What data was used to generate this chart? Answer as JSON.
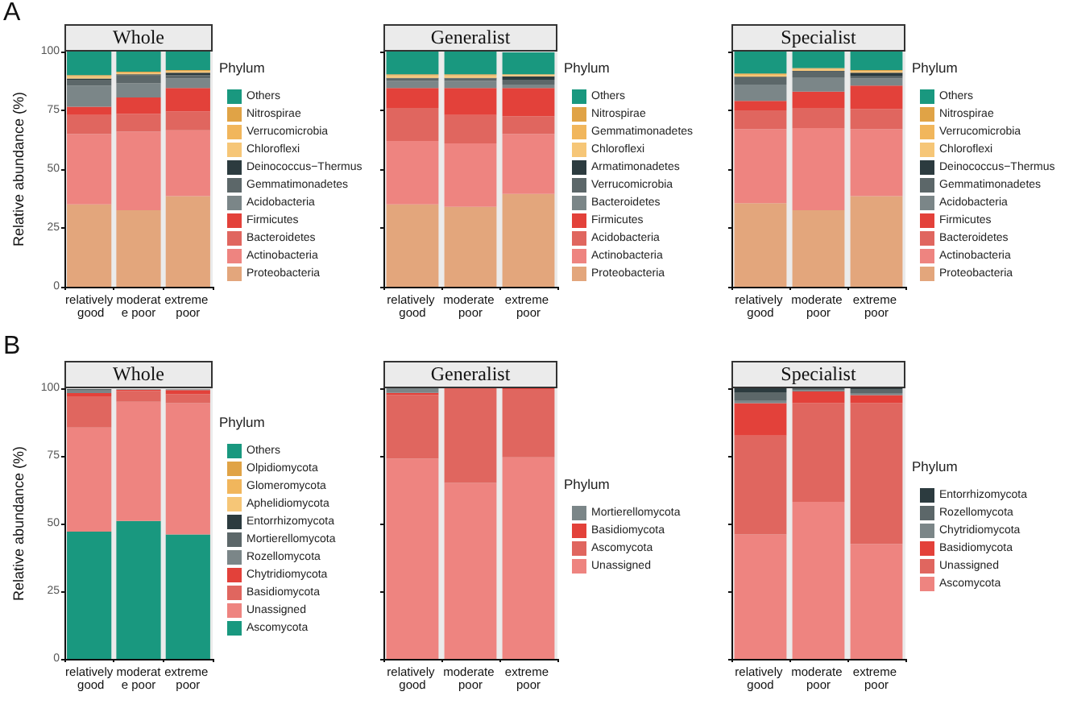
{
  "chart_data": [
    {
      "type": "bar",
      "title": "Whole",
      "annotations": [
        "A"
      ],
      "ylabel": "Relative abundance (%)",
      "legend_title": "Phylum",
      "legend": "right",
      "stacked": true,
      "categories": [
        "relatively good",
        "moderate poor",
        "extreme poor"
      ],
      "ylim": [
        0,
        100
      ],
      "yticks": [
        0,
        25,
        50,
        75,
        100
      ],
      "series": [
        {
          "name": "Proteobacteria",
          "color": "#e3a67c",
          "values": [
            35,
            32.5,
            38.5
          ]
        },
        {
          "name": "Actinobacteria",
          "color": "#ee8480",
          "values": [
            30,
            33.5,
            28
          ]
        },
        {
          "name": "Bacteroidetes",
          "color": "#e0665f",
          "values": [
            8,
            7.5,
            8
          ]
        },
        {
          "name": "Firmicutes",
          "color": "#e3413a",
          "values": [
            3.5,
            7,
            10
          ]
        },
        {
          "name": "Acidobacteria",
          "color": "#7b8688",
          "values": [
            9,
            6,
            4
          ]
        },
        {
          "name": "Gemmatimonadetes",
          "color": "#5c6769",
          "values": [
            2.5,
            3.5,
            1.5
          ]
        },
        {
          "name": "Deinococcus−Thermus",
          "color": "#2c3b3f",
          "values": [
            0.5,
            0.3,
            1
          ]
        },
        {
          "name": "Chloroflexi",
          "color": "#f6c677",
          "values": [
            0.7,
            0.5,
            0.5
          ]
        },
        {
          "name": "Verrucomicrobia",
          "color": "#f1b65c",
          "values": [
            0.4,
            0.3,
            0.3
          ]
        },
        {
          "name": "Nitrospirae",
          "color": "#e0a346",
          "values": [
            0.4,
            0.3,
            0.3
          ]
        },
        {
          "name": "Others",
          "color": "#19987f",
          "values": [
            10,
            8.6,
            7.9
          ]
        }
      ]
    },
    {
      "type": "bar",
      "title": "Generalist",
      "legend_title": "Phylum",
      "legend": "right",
      "stacked": true,
      "tick_labels": "x",
      "categories": [
        "relatively good",
        "moderate poor",
        "extreme poor"
      ],
      "ylim": [
        0,
        100
      ],
      "yticks": [
        0,
        25,
        50,
        75,
        100
      ],
      "series": [
        {
          "name": "Proteobacteria",
          "color": "#e3a67c",
          "values": [
            35,
            34,
            39.5
          ]
        },
        {
          "name": "Actinobacteria",
          "color": "#ee8480",
          "values": [
            27,
            27,
            25.5
          ]
        },
        {
          "name": "Acidobacteria",
          "color": "#e0665f",
          "values": [
            14,
            12,
            7.5
          ]
        },
        {
          "name": "Firmicutes",
          "color": "#e3413a",
          "values": [
            8.5,
            11.5,
            12
          ]
        },
        {
          "name": "Bacteroidetes",
          "color": "#7b8688",
          "values": [
            3,
            3,
            1.5
          ]
        },
        {
          "name": "Verrucomicrobia",
          "color": "#5c6769",
          "values": [
            1,
            1,
            2
          ]
        },
        {
          "name": "Armatimonadetes",
          "color": "#2c3b3f",
          "values": [
            0.3,
            0.3,
            1.5
          ]
        },
        {
          "name": "Chloroflexi",
          "color": "#f6c677",
          "values": [
            0.8,
            0.8,
            0.5
          ]
        },
        {
          "name": "Gemmatimonadetes",
          "color": "#f1b65c",
          "values": [
            0.3,
            0.3,
            0.3
          ]
        },
        {
          "name": "Nitrospirae",
          "color": "#e0a346",
          "values": [
            0.4,
            0.4,
            null
          ]
        },
        {
          "name": "Others",
          "color": "#19987f",
          "values": [
            9.7,
            9.7,
            9.4
          ]
        }
      ]
    },
    {
      "type": "bar",
      "title": "Specialist",
      "legend_title": "Phylum",
      "legend": "right",
      "stacked": true,
      "tick_labels": "x",
      "categories": [
        "relatively good",
        "moderate poor",
        "extreme poor"
      ],
      "ylim": [
        0,
        100
      ],
      "yticks": [
        0,
        25,
        50,
        75,
        100
      ],
      "series": [
        {
          "name": "Proteobacteria",
          "color": "#e3a67c",
          "values": [
            35.5,
            32.5,
            38.5
          ]
        },
        {
          "name": "Actinobacteria",
          "color": "#ee8480",
          "values": [
            31.5,
            35,
            28.5
          ]
        },
        {
          "name": "Bacteroidetes",
          "color": "#e0665f",
          "values": [
            8,
            8.5,
            8.5
          ]
        },
        {
          "name": "Firmicutes",
          "color": "#e3413a",
          "values": [
            4,
            7,
            10
          ]
        },
        {
          "name": "Acidobacteria",
          "color": "#7b8688",
          "values": [
            7,
            6,
            3
          ]
        },
        {
          "name": "Gemmatimonadetes",
          "color": "#5c6769",
          "values": [
            3,
            2.5,
            1
          ]
        },
        {
          "name": "Deinococcus−Thermus",
          "color": "#2c3b3f",
          "values": [
            0.3,
            0.3,
            1.5
          ]
        },
        {
          "name": "Chloroflexi",
          "color": "#f6c677",
          "values": [
            0.8,
            0.6,
            0.5
          ]
        },
        {
          "name": "Verrucomicrobia",
          "color": "#f1b65c",
          "values": [
            0.3,
            0.3,
            0.3
          ]
        },
        {
          "name": "Nitrospirae",
          "color": "#e0a346",
          "values": [
            0.3,
            0.3,
            0.3
          ]
        },
        {
          "name": "Others",
          "color": "#19987f",
          "values": [
            9.3,
            7,
            7.9
          ]
        }
      ]
    },
    {
      "type": "bar",
      "title": "Whole",
      "annotations": [
        "B"
      ],
      "ylabel": "Relative abundance (%)",
      "legend_title": "Phylum",
      "legend": "right",
      "stacked": true,
      "categories": [
        "relatively good",
        "moderate poor",
        "extreme poor"
      ],
      "ylim": [
        0,
        100
      ],
      "yticks": [
        0,
        25,
        50,
        75,
        100
      ],
      "series": [
        {
          "name": "Ascomycota",
          "color": "#19987f",
          "values": [
            47,
            51,
            46
          ]
        },
        {
          "name": "Unassigned",
          "color": "#ee8480",
          "values": [
            38.5,
            44,
            48.5
          ]
        },
        {
          "name": "Basidiomycota",
          "color": "#e0665f",
          "values": [
            11.5,
            4,
            3.3
          ]
        },
        {
          "name": "Chytridiomycota",
          "color": "#e3413a",
          "values": [
            1.2,
            0.4,
            1.5
          ]
        },
        {
          "name": "Rozellomycota",
          "color": "#7b8688",
          "values": [
            1,
            0.2,
            0.3
          ]
        },
        {
          "name": "Mortierellomycota",
          "color": "#5c6769",
          "values": [
            0.3,
            null,
            null
          ]
        },
        {
          "name": "Entorrhizomycota",
          "color": "#2c3b3f",
          "values": [
            0.2,
            null,
            null
          ]
        },
        {
          "name": "Aphelidiomycota",
          "color": "#f6c677",
          "values": [
            null,
            null,
            null
          ]
        },
        {
          "name": "Glomeromycota",
          "color": "#f1b65c",
          "values": [
            null,
            null,
            null
          ]
        },
        {
          "name": "Olpidiomycota",
          "color": "#e0a346",
          "values": [
            null,
            null,
            null
          ]
        },
        {
          "name": "Others",
          "color": "#19987f",
          "values": [
            null,
            null,
            null
          ]
        }
      ]
    },
    {
      "type": "bar",
      "title": "Generalist",
      "legend_title": "Phylum",
      "legend": "right",
      "stacked": true,
      "tick_labels": "x",
      "categories": [
        "relatively good",
        "moderate poor",
        "extreme poor"
      ],
      "ylim": [
        0,
        100
      ],
      "yticks": [
        0,
        25,
        50,
        75,
        100
      ],
      "series": [
        {
          "name": "Unassigned",
          "color": "#ee8480",
          "values": [
            74,
            65,
            74.5
          ]
        },
        {
          "name": "Ascomycota",
          "color": "#e0665f",
          "values": [
            23.5,
            35,
            25.2
          ]
        },
        {
          "name": "Basidiomycota",
          "color": "#e3413a",
          "values": [
            0.8,
            0,
            0.3
          ]
        },
        {
          "name": "Mortierellomycota",
          "color": "#7b8688",
          "values": [
            1.7,
            0,
            0
          ]
        }
      ]
    },
    {
      "type": "bar",
      "title": "Specialist",
      "legend_title": "Phylum",
      "legend": "right",
      "stacked": true,
      "tick_labels": "x",
      "categories": [
        "relatively good",
        "moderate poor",
        "extreme poor"
      ],
      "ylim": [
        0,
        100
      ],
      "yticks": [
        0,
        25,
        50,
        75,
        100
      ],
      "series": [
        {
          "name": "Ascomycota",
          "color": "#ee8480",
          "values": [
            46,
            58,
            42.5
          ]
        },
        {
          "name": "Unassigned",
          "color": "#e0665f",
          "values": [
            36.5,
            36.5,
            52
          ]
        },
        {
          "name": "Basidiomycota",
          "color": "#e3413a",
          "values": [
            12,
            4.3,
            3
          ]
        },
        {
          "name": "Chytridiomycota",
          "color": "#7b8688",
          "values": [
            1,
            0.5,
            0.7
          ]
        },
        {
          "name": "Rozellomycota",
          "color": "#5c6769",
          "values": [
            3,
            0.5,
            1.5
          ]
        },
        {
          "name": "Entorrhizomycota",
          "color": "#2c3b3f",
          "values": [
            1.5,
            0.2,
            0.3
          ]
        }
      ]
    }
  ]
}
